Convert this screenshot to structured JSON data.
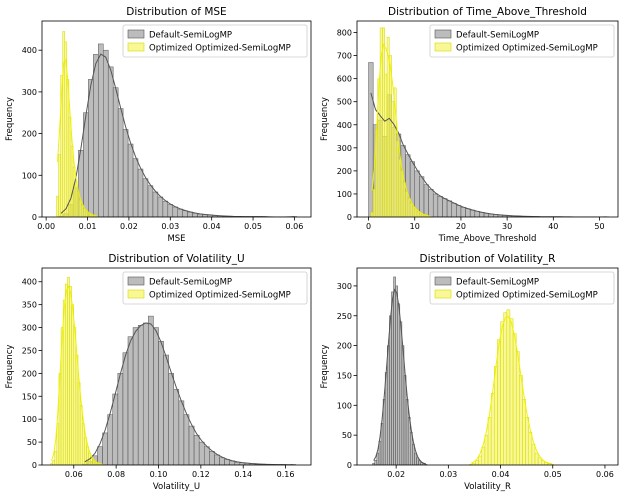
{
  "colors": {
    "default_fill": "#a6a6a6",
    "default_edge": "#555555",
    "default_kde": "#555555",
    "optimized_fill": "#f5f56a",
    "optimized_edge": "#d9d900",
    "optimized_kde": "#f0f000"
  },
  "chart_data": [
    {
      "type": "histogram",
      "title": "Distribution of MSE",
      "xlabel": "MSE",
      "ylabel": "Frequency",
      "xlim": [
        -0.001,
        0.064
      ],
      "ylim": [
        0,
        470
      ],
      "xticks": [
        0.0,
        0.01,
        0.02,
        0.03,
        0.04,
        0.05,
        0.06
      ],
      "xtick_labels": [
        "0.00",
        "0.01",
        "0.02",
        "0.03",
        "0.04",
        "0.05",
        "0.06"
      ],
      "yticks": [
        0,
        100,
        200,
        300,
        400
      ],
      "legend": "top-right",
      "series": [
        {
          "name": "Default-SemiLogMP",
          "bin_start": 0.003,
          "bin_width": 0.0012,
          "counts": [
            2,
            8,
            30,
            70,
            160,
            250,
            330,
            390,
            415,
            400,
            360,
            310,
            260,
            210,
            175,
            140,
            115,
            92,
            75,
            60,
            48,
            38,
            30,
            24,
            19,
            15,
            12,
            9,
            7,
            6,
            5,
            4,
            3,
            2,
            2,
            1,
            1,
            1,
            1,
            1,
            1,
            1,
            0,
            0,
            0,
            0,
            0,
            1
          ]
        },
        {
          "name": "Optimized Optimized-SemiLogMP",
          "bin_start": 0.0025,
          "bin_width": 0.0005,
          "counts": [
            50,
            150,
            340,
            445,
            420,
            330,
            240,
            170,
            120,
            85,
            60,
            40,
            28,
            20,
            14,
            10,
            7,
            5,
            3,
            2
          ]
        }
      ]
    },
    {
      "type": "histogram",
      "title": "Distribution of Time_Above_Threshold",
      "xlabel": "Time_Above_Threshold",
      "ylabel": "Frequency",
      "xlim": [
        -2.5,
        54
      ],
      "ylim": [
        0,
        850
      ],
      "xticks": [
        0,
        10,
        20,
        30,
        40,
        50
      ],
      "xtick_labels": [
        "0",
        "10",
        "20",
        "30",
        "40",
        "50"
      ],
      "yticks": [
        0,
        100,
        200,
        300,
        400,
        500,
        600,
        700,
        800
      ],
      "legend": "top-right",
      "series": [
        {
          "name": "Default-SemiLogMP",
          "bin_start": 0,
          "bin_width": 1,
          "counts": [
            670,
            400,
            420,
            350,
            530,
            390,
            360,
            310,
            270,
            240,
            200,
            175,
            140,
            120,
            100,
            90,
            80,
            70,
            60,
            50,
            42,
            36,
            30,
            25,
            20,
            16,
            13,
            11,
            9,
            7,
            6,
            5,
            4,
            3,
            3,
            2,
            2,
            1,
            1,
            1,
            1,
            1,
            1,
            0,
            0,
            0,
            0,
            0,
            0,
            0,
            0,
            1
          ]
        },
        {
          "name": "Optimized Optimized-SemiLogMP",
          "bin_start": 0.5,
          "bin_width": 0.5,
          "counts": [
            20,
            120,
            380,
            600,
            820,
            820,
            620,
            780,
            700,
            500,
            560,
            330,
            250,
            200,
            150,
            110,
            80,
            60,
            45,
            35,
            25,
            18,
            12,
            8,
            5,
            3
          ]
        }
      ]
    },
    {
      "type": "histogram",
      "title": "Distribution of Volatility_U",
      "xlabel": "Volatility_U",
      "ylabel": "Frequency",
      "xlim": [
        0.045,
        0.172
      ],
      "ylim": [
        0,
        430
      ],
      "xticks": [
        0.06,
        0.08,
        0.1,
        0.12,
        0.14,
        0.16
      ],
      "xtick_labels": [
        "0.06",
        "0.08",
        "0.10",
        "0.12",
        "0.14",
        "0.16"
      ],
      "yticks": [
        0,
        50,
        100,
        150,
        200,
        250,
        300,
        350,
        400
      ],
      "legend": "top-right",
      "series": [
        {
          "name": "Default-SemiLogMP",
          "bin_start": 0.064,
          "bin_width": 0.0024,
          "counts": [
            2,
            8,
            20,
            40,
            70,
            110,
            155,
            200,
            245,
            280,
            300,
            305,
            310,
            325,
            300,
            270,
            240,
            200,
            165,
            140,
            110,
            85,
            65,
            50,
            40,
            30,
            22,
            16,
            12,
            9,
            6,
            5,
            4,
            3,
            2,
            2,
            1,
            1,
            1,
            1,
            0,
            1
          ]
        },
        {
          "name": "Optimized Optimized-SemiLogMP",
          "bin_start": 0.049,
          "bin_width": 0.001,
          "counts": [
            3,
            10,
            30,
            90,
            200,
            300,
            360,
            395,
            410,
            390,
            350,
            300,
            240,
            180,
            130,
            90,
            60,
            40,
            25,
            15,
            10,
            6,
            4,
            2,
            1
          ]
        }
      ]
    },
    {
      "type": "histogram",
      "title": "Distribution of Volatility_R",
      "xlabel": "Volatility_R",
      "ylabel": "Frequency",
      "xlim": [
        0.0125,
        0.0625
      ],
      "ylim": [
        0,
        330
      ],
      "xticks": [
        0.02,
        0.03,
        0.04,
        0.05,
        0.06
      ],
      "xtick_labels": [
        "0.02",
        "0.03",
        "0.04",
        "0.05",
        "0.06"
      ],
      "yticks": [
        0,
        50,
        100,
        150,
        200,
        250,
        300
      ],
      "legend": "top-right",
      "series": [
        {
          "name": "Default-SemiLogMP",
          "bin_start": 0.0155,
          "bin_width": 0.0004,
          "counts": [
            3,
            8,
            20,
            40,
            70,
            110,
            155,
            200,
            250,
            290,
            315,
            300,
            270,
            240,
            200,
            150,
            110,
            80,
            55,
            35,
            20,
            12,
            7,
            4,
            2,
            1
          ]
        },
        {
          "name": "Optimized Optimized-SemiLogMP",
          "bin_start": 0.034,
          "bin_width": 0.0006,
          "counts": [
            1,
            3,
            8,
            15,
            30,
            50,
            80,
            120,
            165,
            210,
            240,
            255,
            260,
            245,
            220,
            190,
            150,
            110,
            80,
            55,
            35,
            20,
            12,
            7,
            4,
            2,
            1
          ]
        }
      ]
    }
  ]
}
